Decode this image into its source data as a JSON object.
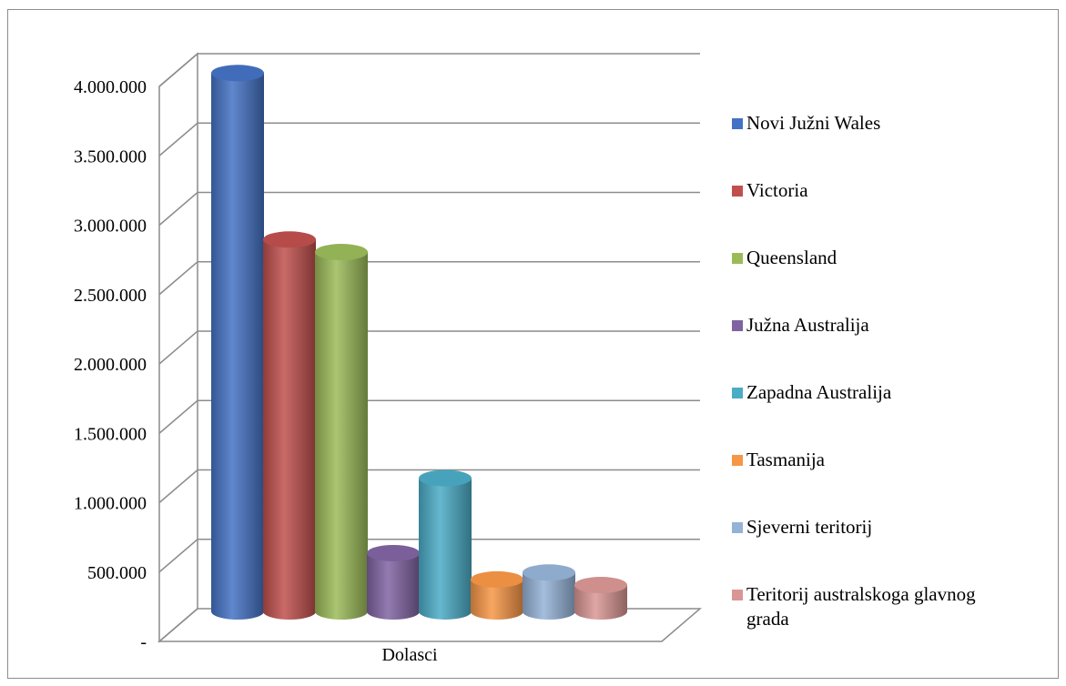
{
  "chart_data": {
    "type": "bar",
    "categories": [
      "Dolasci"
    ],
    "series": [
      {
        "name": "Novi Južni Wales",
        "values": [
          3880000
        ],
        "color": "#4472C4"
      },
      {
        "name": "Victoria",
        "values": [
          2680000
        ],
        "color": "#C0504D"
      },
      {
        "name": "Queensland",
        "values": [
          2590000
        ],
        "color": "#9BBB59"
      },
      {
        "name": "Južna Australija",
        "values": [
          420000
        ],
        "color": "#8064A2"
      },
      {
        "name": "Zapadna Australija",
        "values": [
          960000
        ],
        "color": "#4BACC6"
      },
      {
        "name": "Tasmanija",
        "values": [
          230000
        ],
        "color": "#F79646"
      },
      {
        "name": "Sjeverni teritorij",
        "values": [
          280000
        ],
        "color": "#95B3D7"
      },
      {
        "name": "Teritorij australskoga glavnog grada",
        "values": [
          190000
        ],
        "color": "#D99694"
      }
    ],
    "y_ticks": [
      "-",
      "500.000",
      "1.000.000",
      "1.500.000",
      "2.000.000",
      "2.500.000",
      "3.000.000",
      "3.500.000",
      "4.000.000"
    ],
    "ylim": [
      0,
      4000000
    ],
    "grid": true,
    "legend_position": "right",
    "style": "3d-cylinder"
  }
}
